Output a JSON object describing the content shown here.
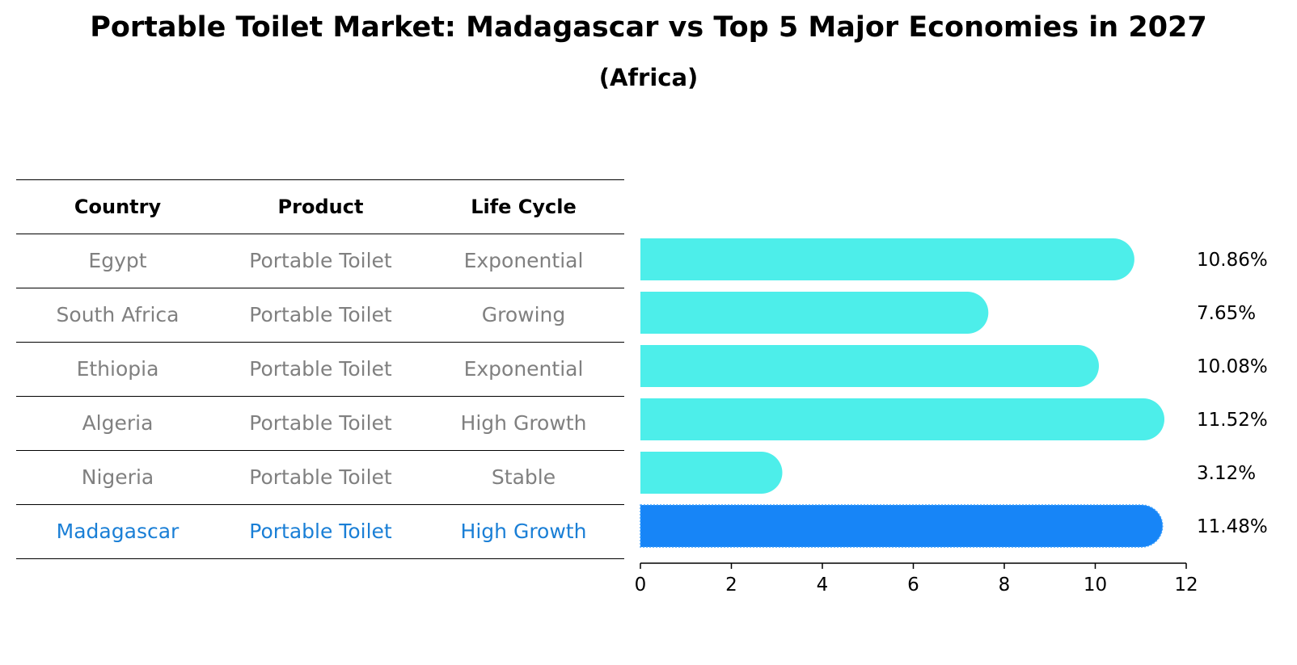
{
  "chart_data": {
    "type": "bar",
    "orientation": "horizontal",
    "title": "Portable Toilet Market: Madagascar vs Top 5 Major Economies in 2027",
    "subtitle": "(Africa)",
    "table": {
      "columns": [
        "Country",
        "Product",
        "Life Cycle"
      ],
      "rows": [
        {
          "country": "Egypt",
          "product": "Portable Toilet",
          "life_cycle": "Exponential"
        },
        {
          "country": "South Africa",
          "product": "Portable Toilet",
          "life_cycle": "Growing"
        },
        {
          "country": "Ethiopia",
          "product": "Portable Toilet",
          "life_cycle": "Exponential"
        },
        {
          "country": "Algeria",
          "product": "Portable Toilet",
          "life_cycle": "High Growth"
        },
        {
          "country": "Nigeria",
          "product": "Portable Toilet",
          "life_cycle": "Stable"
        },
        {
          "country": "Madagascar",
          "product": "Portable Toilet",
          "life_cycle": "High Growth"
        }
      ]
    },
    "categories": [
      "Egypt",
      "South Africa",
      "Ethiopia",
      "Algeria",
      "Nigeria",
      "Madagascar"
    ],
    "values": [
      10.86,
      7.65,
      10.08,
      11.52,
      3.12,
      11.48
    ],
    "value_labels": [
      "10.86%",
      "7.65%",
      "10.08%",
      "11.52%",
      "3.12%",
      "11.48%"
    ],
    "highlight": "Madagascar",
    "xlim": [
      0,
      12
    ],
    "xticks": [
      0,
      2,
      4,
      6,
      8,
      10,
      12
    ],
    "colors": {
      "bar": "#4deeea",
      "highlight_bar": "#1785f7",
      "highlight_text": "#1a7fd6",
      "muted_text": "#808080"
    }
  }
}
